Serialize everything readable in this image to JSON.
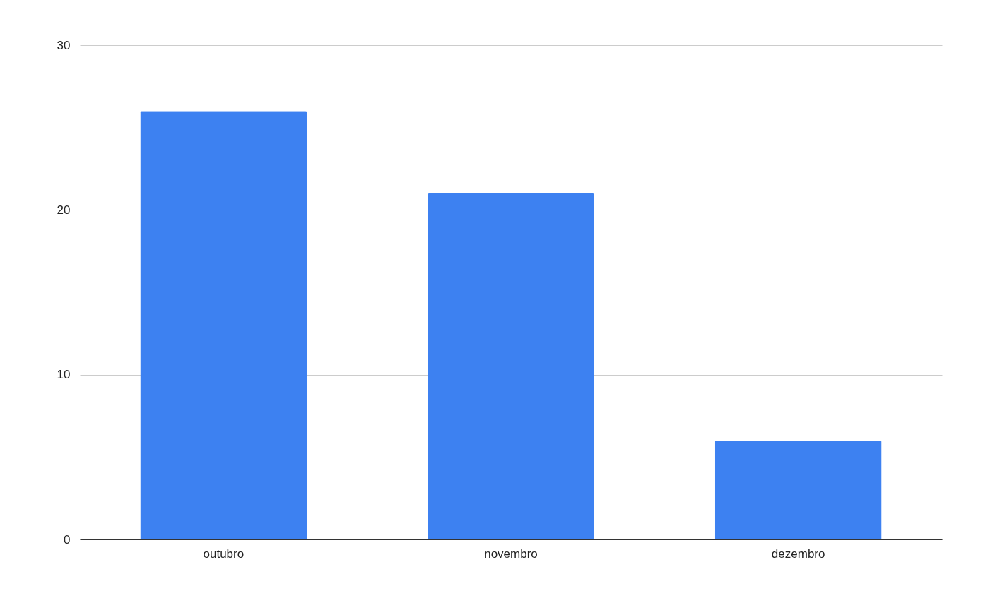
{
  "chart_data": {
    "type": "bar",
    "categories": [
      "outubro",
      "novembro",
      "dezembro"
    ],
    "values": [
      26,
      21,
      6
    ],
    "color": "#3d81f1",
    "ylim": [
      0,
      30
    ],
    "yticks": [
      0,
      10,
      20,
      30
    ],
    "grid": "y"
  }
}
